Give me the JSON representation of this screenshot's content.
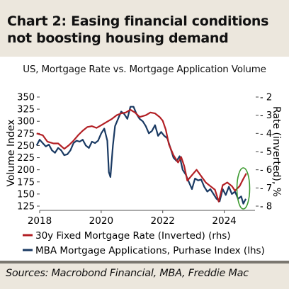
{
  "headline": "Chart 2: Easing financial conditions not boosting housing demand",
  "source": "Sources: Macrobond Financial, MBA, Freddie Mac",
  "chart_data": {
    "type": "line",
    "title": "US, Mortgage Rate vs. Mortgage Application Volume",
    "xlabel": "",
    "ylabel_left": "Volume Index",
    "ylabel_right": "Rate (inverted), %",
    "x_ticks": [
      "2018",
      "2020",
      "2022",
      "2024"
    ],
    "xlim": [
      2018.0,
      2025.0
    ],
    "left_axis": {
      "ticks": [
        125,
        150,
        175,
        200,
        225,
        250,
        275,
        300,
        325,
        350
      ],
      "ylim": [
        115,
        355
      ]
    },
    "right_axis": {
      "ticks": [
        2,
        3,
        4,
        5,
        6,
        7,
        8
      ],
      "inverted": true,
      "ylim": [
        2,
        8.2
      ]
    },
    "legend_position": "bottom-left",
    "grid": false,
    "annotation": "green ellipse highlighting the latest 2024 readings",
    "colors": {
      "rate": "#b21f24",
      "applications": "#1a3a63",
      "highlight": "#3c9a2f"
    },
    "series": [
      {
        "name": "30y Fixed Mortgage Rate (Inverted) (rhs)",
        "axis": "right",
        "x": [
          2017.9,
          2018.1,
          2018.25,
          2018.45,
          2018.6,
          2018.8,
          2018.95,
          2019.1,
          2019.25,
          2019.4,
          2019.55,
          2019.7,
          2019.85,
          2020.0,
          2020.2,
          2020.35,
          2020.5,
          2020.65,
          2020.8,
          2020.95,
          2021.1,
          2021.25,
          2021.45,
          2021.6,
          2021.75,
          2021.9,
          2022.0,
          2022.1,
          2022.2,
          2022.35,
          2022.5,
          2022.6,
          2022.7,
          2022.8,
          2022.9,
          2023.0,
          2023.1,
          2023.25,
          2023.4,
          2023.55,
          2023.7,
          2023.82,
          2023.95,
          2024.1,
          2024.25,
          2024.35,
          2024.5,
          2024.62,
          2024.72
        ],
        "values": [
          4.0,
          4.1,
          4.45,
          4.55,
          4.55,
          4.85,
          4.65,
          4.4,
          4.1,
          3.85,
          3.65,
          3.6,
          3.7,
          3.55,
          3.35,
          3.2,
          3.0,
          2.9,
          2.85,
          2.7,
          2.85,
          3.1,
          3.0,
          2.85,
          2.9,
          3.1,
          3.3,
          3.8,
          4.6,
          5.2,
          5.6,
          5.3,
          5.8,
          6.6,
          6.4,
          6.2,
          6.0,
          6.35,
          6.7,
          6.9,
          7.1,
          7.75,
          6.85,
          6.7,
          6.9,
          7.15,
          6.9,
          6.5,
          6.2
        ]
      },
      {
        "name": "MBA Mortgage Applications, Purhase Index (lhs)",
        "axis": "left",
        "x": [
          2017.9,
          2018.0,
          2018.1,
          2018.2,
          2018.3,
          2018.4,
          2018.5,
          2018.6,
          2018.7,
          2018.8,
          2018.9,
          2019.0,
          2019.1,
          2019.2,
          2019.3,
          2019.4,
          2019.5,
          2019.6,
          2019.7,
          2019.8,
          2019.9,
          2020.0,
          2020.1,
          2020.2,
          2020.25,
          2020.3,
          2020.38,
          2020.45,
          2020.55,
          2020.65,
          2020.75,
          2020.85,
          2020.95,
          2021.05,
          2021.15,
          2021.25,
          2021.35,
          2021.45,
          2021.55,
          2021.65,
          2021.75,
          2021.85,
          2021.95,
          2022.05,
          2022.15,
          2022.25,
          2022.35,
          2022.45,
          2022.55,
          2022.65,
          2022.75,
          2022.85,
          2022.95,
          2023.05,
          2023.15,
          2023.25,
          2023.35,
          2023.45,
          2023.55,
          2023.65,
          2023.75,
          2023.85,
          2023.95,
          2024.05,
          2024.15,
          2024.25,
          2024.35,
          2024.45,
          2024.55,
          2024.62,
          2024.7
        ],
        "values": [
          250,
          262,
          255,
          248,
          252,
          240,
          235,
          245,
          240,
          230,
          232,
          240,
          255,
          260,
          258,
          262,
          250,
          245,
          258,
          255,
          260,
          275,
          285,
          260,
          195,
          185,
          250,
          290,
          305,
          320,
          315,
          305,
          330,
          330,
          315,
          305,
          300,
          290,
          275,
          280,
          292,
          270,
          278,
          270,
          265,
          245,
          225,
          218,
          228,
          200,
          190,
          175,
          160,
          182,
          178,
          180,
          165,
          155,
          160,
          150,
          140,
          135,
          160,
          148,
          165,
          150,
          155,
          140,
          145,
          130,
          140
        ]
      }
    ]
  }
}
